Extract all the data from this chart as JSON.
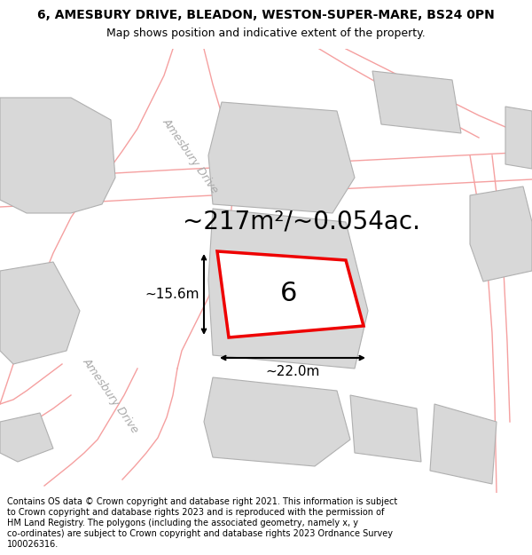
{
  "title_line1": "6, AMESBURY DRIVE, BLEADON, WESTON-SUPER-MARE, BS24 0PN",
  "title_line2": "Map shows position and indicative extent of the property.",
  "footer_lines": [
    "Contains OS data © Crown copyright and database right 2021. This information is subject",
    "to Crown copyright and database rights 2023 and is reproduced with the permission of",
    "HM Land Registry. The polygons (including the associated geometry, namely x, y",
    "co-ordinates) are subject to Crown copyright and database rights 2023 Ordnance Survey",
    "100026316."
  ],
  "area_label": "~217m²/~0.054ac.",
  "width_label": "~22.0m",
  "height_label": "~15.6m",
  "plot_number": "6",
  "bg": "#ffffff",
  "building_fill": "#d8d8d8",
  "building_edge": "#b0b0b0",
  "road_fill": "#ffffff",
  "road_outline": "#f5a0a0",
  "subject_fill": "#ffffff",
  "subject_edge": "#ee0000",
  "dim_color": "#000000",
  "road_label_color": "#aaaaaa",
  "header_fontsize": 10,
  "subtitle_fontsize": 9,
  "footer_fontsize": 7.0,
  "area_fontsize": 20,
  "number_fontsize": 22,
  "dim_fontsize": 11
}
